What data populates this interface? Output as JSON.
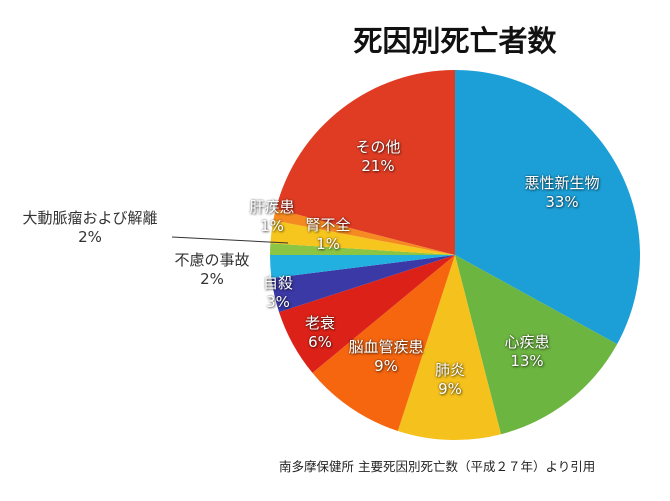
{
  "chart_data": {
    "type": "pie",
    "title": "死因別死亡者数",
    "start": "top",
    "direction": "clockwise",
    "slices": [
      {
        "label": "悪性新生物",
        "value": 33,
        "value_label": "33%",
        "color": "#1c9fd6"
      },
      {
        "label": "心疾患",
        "value": 13,
        "value_label": "13%",
        "color": "#6cb541"
      },
      {
        "label": "肺炎",
        "value": 9,
        "value_label": "9%",
        "color": "#f5c11c"
      },
      {
        "label": "脳血管疾患",
        "value": 9,
        "value_label": "9%",
        "color": "#f5660f"
      },
      {
        "label": "老衰",
        "value": 6,
        "value_label": "6%",
        "color": "#dc2218"
      },
      {
        "label": "自殺",
        "value": 3,
        "value_label": "3%",
        "color": "#3b39a6"
      },
      {
        "label": "不慮の事故",
        "value": 2,
        "value_label": "2%",
        "color": "#22b0e0"
      },
      {
        "label": "腎不全",
        "value": 1,
        "value_label": "1%",
        "color": "#8cc443"
      },
      {
        "label": "大動脈瘤および解離",
        "value": 2,
        "value_label": "2%",
        "color": "#f6c51e"
      },
      {
        "label": "肝疾患",
        "value": 1,
        "value_label": "1%",
        "color": "#f58a20"
      },
      {
        "label": "その他",
        "value": 21,
        "value_label": "21%",
        "color": "#e03c24"
      }
    ]
  },
  "source": "南多摩保健所 主要死因別死亡数（平成２７年）より引用"
}
